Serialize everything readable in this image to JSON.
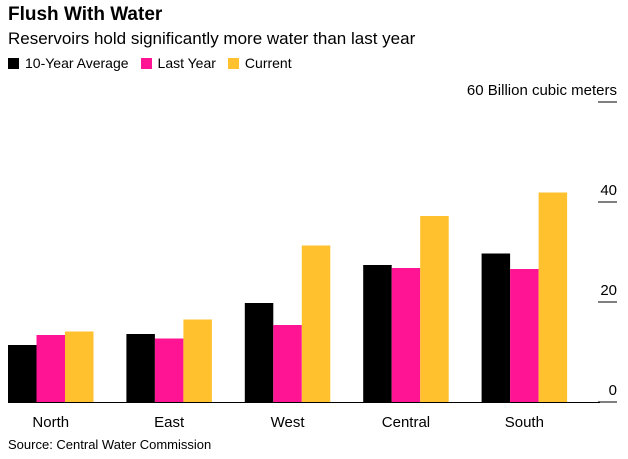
{
  "title": "Flush With Water",
  "subtitle": "Reservoirs hold significantly more water than last year",
  "source": "Source: Central Water Commission",
  "colors": {
    "avg": "#000000",
    "last": "#ff1493",
    "current": "#ffc12d"
  },
  "legend": [
    {
      "label": "10-Year Average",
      "color": "#000000"
    },
    {
      "label": "Last Year",
      "color": "#ff1493"
    },
    {
      "label": "Current",
      "color": "#ffc12d"
    }
  ],
  "chart_data": {
    "type": "bar",
    "title": "Flush With Water",
    "subtitle": "Reservoirs hold significantly more water than last year",
    "categories": [
      "North",
      "East",
      "West",
      "Central",
      "South"
    ],
    "series": [
      {
        "name": "10-Year Average",
        "color": "#000000",
        "values": [
          11.4,
          13.6,
          19.8,
          27.4,
          29.7
        ]
      },
      {
        "name": "Last Year",
        "color": "#ff1493",
        "values": [
          13.4,
          12.7,
          15.4,
          26.8,
          26.6
        ]
      },
      {
        "name": "Current",
        "color": "#ffc12d",
        "values": [
          14.1,
          16.5,
          31.3,
          37.2,
          41.9
        ]
      }
    ],
    "ylim": [
      0,
      60
    ],
    "yticks": [
      "0",
      "20",
      "40",
      "60 Billion cubic meters"
    ],
    "ytick_values": [
      0,
      20,
      40,
      60
    ],
    "y_axis_position": "right",
    "grid": false,
    "legend_position": "top-left"
  }
}
